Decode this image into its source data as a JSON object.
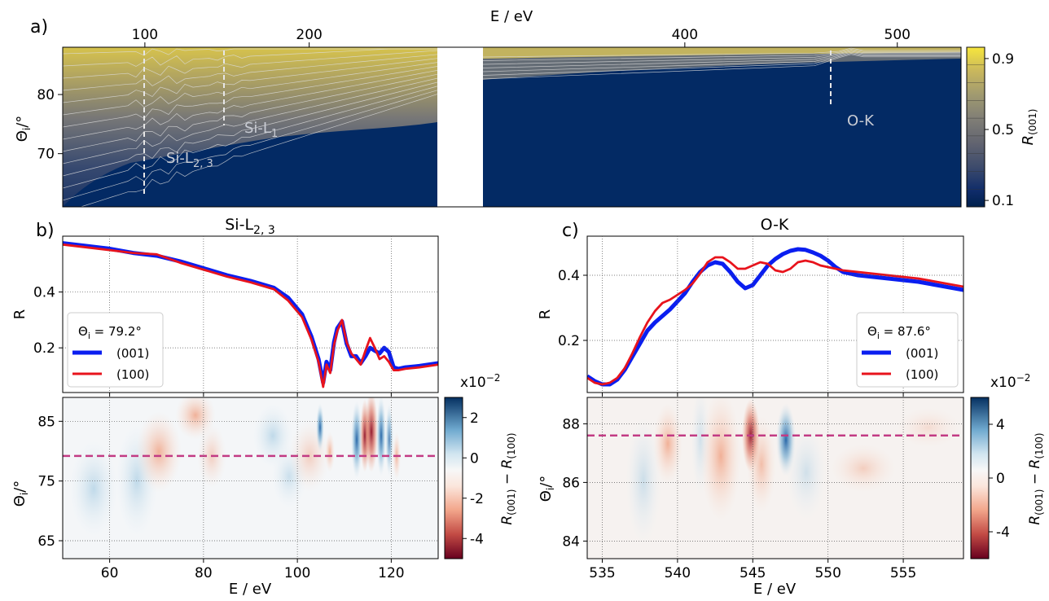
{
  "panels": {
    "a": {
      "letter": "a)",
      "xlabel_top": "E / eV",
      "ylabel": "Θ_i/°",
      "cbar_label": "R_(001)"
    },
    "b": {
      "letter": "b)",
      "title": "Si-L_{2,3}",
      "ylabel_top": "R",
      "ylabel_bottom": "Θ_i/°",
      "xlabel": "E / eV",
      "cbar_label": "R_(001) − R_(100)",
      "cbar_exponent": "x10^{-2}"
    },
    "c": {
      "letter": "c)",
      "title": "O-K",
      "ylabel_top": "R",
      "ylabel_bottom": "Θ_i/°",
      "xlabel": "E / eV",
      "cbar_label": "R_(001) − R_(100)",
      "cbar_exponent": "x10^{-2}"
    }
  },
  "chart_data": [
    {
      "id": "a",
      "type": "heatmap",
      "xlabel": "E / eV",
      "ylabel": "Θi/°",
      "xlim": [
        50,
        530
      ],
      "ylim": [
        61,
        88
      ],
      "x_ticks": [
        100,
        200,
        400,
        500
      ],
      "y_ticks": [
        70,
        80
      ],
      "gap_x": [
        278,
        305
      ],
      "annotations": [
        {
          "text": "Si-L2,3",
          "x": 100
        },
        {
          "text": "Si-L1",
          "x": 150
        },
        {
          "text": "O-K",
          "x": 525
        }
      ],
      "colorbar": {
        "label": "R(001)",
        "ticks": [
          0.1,
          0.5,
          0.9
        ],
        "levels": [
          0.05,
          0.15,
          0.25,
          0.35,
          0.45,
          0.55,
          0.65,
          0.75,
          0.85,
          0.95
        ]
      }
    },
    {
      "id": "b_top",
      "type": "line",
      "xlim": [
        50,
        130
      ],
      "ylim": [
        0.04,
        0.6
      ],
      "x_ticks": [
        60,
        80,
        100,
        120
      ],
      "y_ticks": [
        0.2,
        0.4
      ],
      "ylabel": "R",
      "legend": {
        "title": "Θi = 79.2°",
        "position": "left",
        "entries": [
          "(001)",
          "(100)"
        ]
      },
      "series": [
        {
          "name": "(001)",
          "color": "#0a1ef0",
          "x": [
            50,
            55,
            60,
            65,
            70,
            75,
            80,
            85,
            90,
            95,
            98,
            101,
            103,
            104.5,
            105.5,
            106.2,
            107,
            107.8,
            108.5,
            109.5,
            110.5,
            111.5,
            112.5,
            113.5,
            114.5,
            115.5,
            116.5,
            117.5,
            118.5,
            119.5,
            120.5,
            121.5,
            123,
            126,
            130
          ],
          "y": [
            0.575,
            0.565,
            0.555,
            0.54,
            0.53,
            0.51,
            0.485,
            0.46,
            0.44,
            0.415,
            0.38,
            0.32,
            0.24,
            0.16,
            0.075,
            0.15,
            0.12,
            0.22,
            0.27,
            0.295,
            0.215,
            0.17,
            0.17,
            0.145,
            0.17,
            0.2,
            0.19,
            0.18,
            0.2,
            0.185,
            0.13,
            0.125,
            0.13,
            0.135,
            0.145
          ]
        },
        {
          "name": "(100)",
          "color": "#e8131c",
          "x": [
            50,
            55,
            60,
            65,
            70,
            75,
            80,
            85,
            90,
            95,
            98,
            101,
            103,
            104.5,
            105.5,
            106.2,
            107,
            107.8,
            108.5,
            109.5,
            110.5,
            111.5,
            112.5,
            113.5,
            114.5,
            115.5,
            116.5,
            117.5,
            118.5,
            119.5,
            120.5,
            121.5,
            123,
            126,
            130
          ],
          "y": [
            0.57,
            0.56,
            0.55,
            0.54,
            0.535,
            0.505,
            0.48,
            0.455,
            0.435,
            0.41,
            0.37,
            0.31,
            0.23,
            0.15,
            0.06,
            0.14,
            0.11,
            0.21,
            0.26,
            0.3,
            0.22,
            0.18,
            0.16,
            0.14,
            0.19,
            0.235,
            0.2,
            0.16,
            0.17,
            0.15,
            0.12,
            0.12,
            0.125,
            0.13,
            0.14
          ]
        }
      ]
    },
    {
      "id": "b_bottom",
      "type": "heatmap",
      "xlim": [
        50,
        130
      ],
      "ylim": [
        62,
        89
      ],
      "x_ticks": [
        60,
        80,
        100,
        120
      ],
      "y_ticks": [
        65,
        75,
        85
      ],
      "xlabel": "E / eV",
      "ylabel": "Θi/°",
      "reference_line": 79.2,
      "colorbar": {
        "ticks": [
          2,
          0,
          -2,
          -4
        ],
        "range": [
          -5,
          3
        ]
      }
    },
    {
      "id": "c_top",
      "type": "line",
      "xlim": [
        534,
        559
      ],
      "ylim": [
        0.04,
        0.52
      ],
      "x_ticks": [
        535,
        540,
        545,
        550,
        555
      ],
      "y_ticks": [
        0.2,
        0.4
      ],
      "ylabel": "R",
      "legend": {
        "title": "Θi = 87.6°",
        "position": "right",
        "entries": [
          "(001)",
          "(100)"
        ]
      },
      "series": [
        {
          "name": "(001)",
          "color": "#0a1ef0",
          "x": [
            534,
            534.5,
            535,
            535.5,
            536,
            536.5,
            537,
            537.5,
            538,
            538.5,
            539,
            539.5,
            540,
            540.5,
            541,
            541.5,
            542,
            542.5,
            543,
            543.5,
            544,
            544.5,
            545,
            545.5,
            546,
            546.5,
            547,
            547.5,
            548,
            548.5,
            549,
            549.5,
            550,
            550.5,
            551,
            552,
            554,
            556,
            559
          ],
          "y": [
            0.09,
            0.075,
            0.065,
            0.065,
            0.08,
            0.11,
            0.15,
            0.19,
            0.23,
            0.255,
            0.275,
            0.295,
            0.32,
            0.345,
            0.38,
            0.41,
            0.43,
            0.44,
            0.435,
            0.41,
            0.38,
            0.36,
            0.37,
            0.4,
            0.43,
            0.45,
            0.465,
            0.475,
            0.48,
            0.478,
            0.47,
            0.46,
            0.445,
            0.425,
            0.41,
            0.4,
            0.39,
            0.38,
            0.355
          ]
        },
        {
          "name": "(100)",
          "color": "#e8131c",
          "x": [
            534,
            534.5,
            535,
            535.5,
            536,
            536.5,
            537,
            537.5,
            538,
            538.5,
            539,
            539.5,
            540,
            540.5,
            541,
            541.5,
            542,
            542.5,
            543,
            543.5,
            544,
            544.5,
            545,
            545.5,
            546,
            546.5,
            547,
            547.5,
            548,
            548.5,
            549,
            549.5,
            550,
            550.5,
            551,
            552,
            554,
            556,
            559
          ],
          "y": [
            0.085,
            0.07,
            0.065,
            0.07,
            0.085,
            0.115,
            0.16,
            0.21,
            0.255,
            0.29,
            0.315,
            0.325,
            0.34,
            0.355,
            0.375,
            0.405,
            0.44,
            0.455,
            0.455,
            0.44,
            0.42,
            0.42,
            0.43,
            0.44,
            0.435,
            0.415,
            0.41,
            0.42,
            0.44,
            0.445,
            0.44,
            0.43,
            0.425,
            0.42,
            0.415,
            0.41,
            0.4,
            0.39,
            0.365
          ]
        }
      ]
    },
    {
      "id": "c_bottom",
      "type": "heatmap",
      "xlim": [
        534,
        559
      ],
      "ylim": [
        83.4,
        88.9
      ],
      "x_ticks": [
        535,
        540,
        545,
        550,
        555
      ],
      "y_ticks": [
        84,
        86,
        88
      ],
      "xlabel": "E / eV",
      "ylabel": "Θi/°",
      "reference_line": 87.6,
      "colorbar": {
        "ticks": [
          4,
          0,
          -4
        ],
        "range": [
          -6,
          6
        ]
      }
    }
  ],
  "colors": {
    "navy": "#032a64",
    "gold": "#e2cb4b",
    "blue": "#0a1ef0",
    "red": "#e8131c",
    "dash_magenta": "#c23b84",
    "div_pos": "#1d5fa3",
    "div_neg": "#8d0c24"
  }
}
